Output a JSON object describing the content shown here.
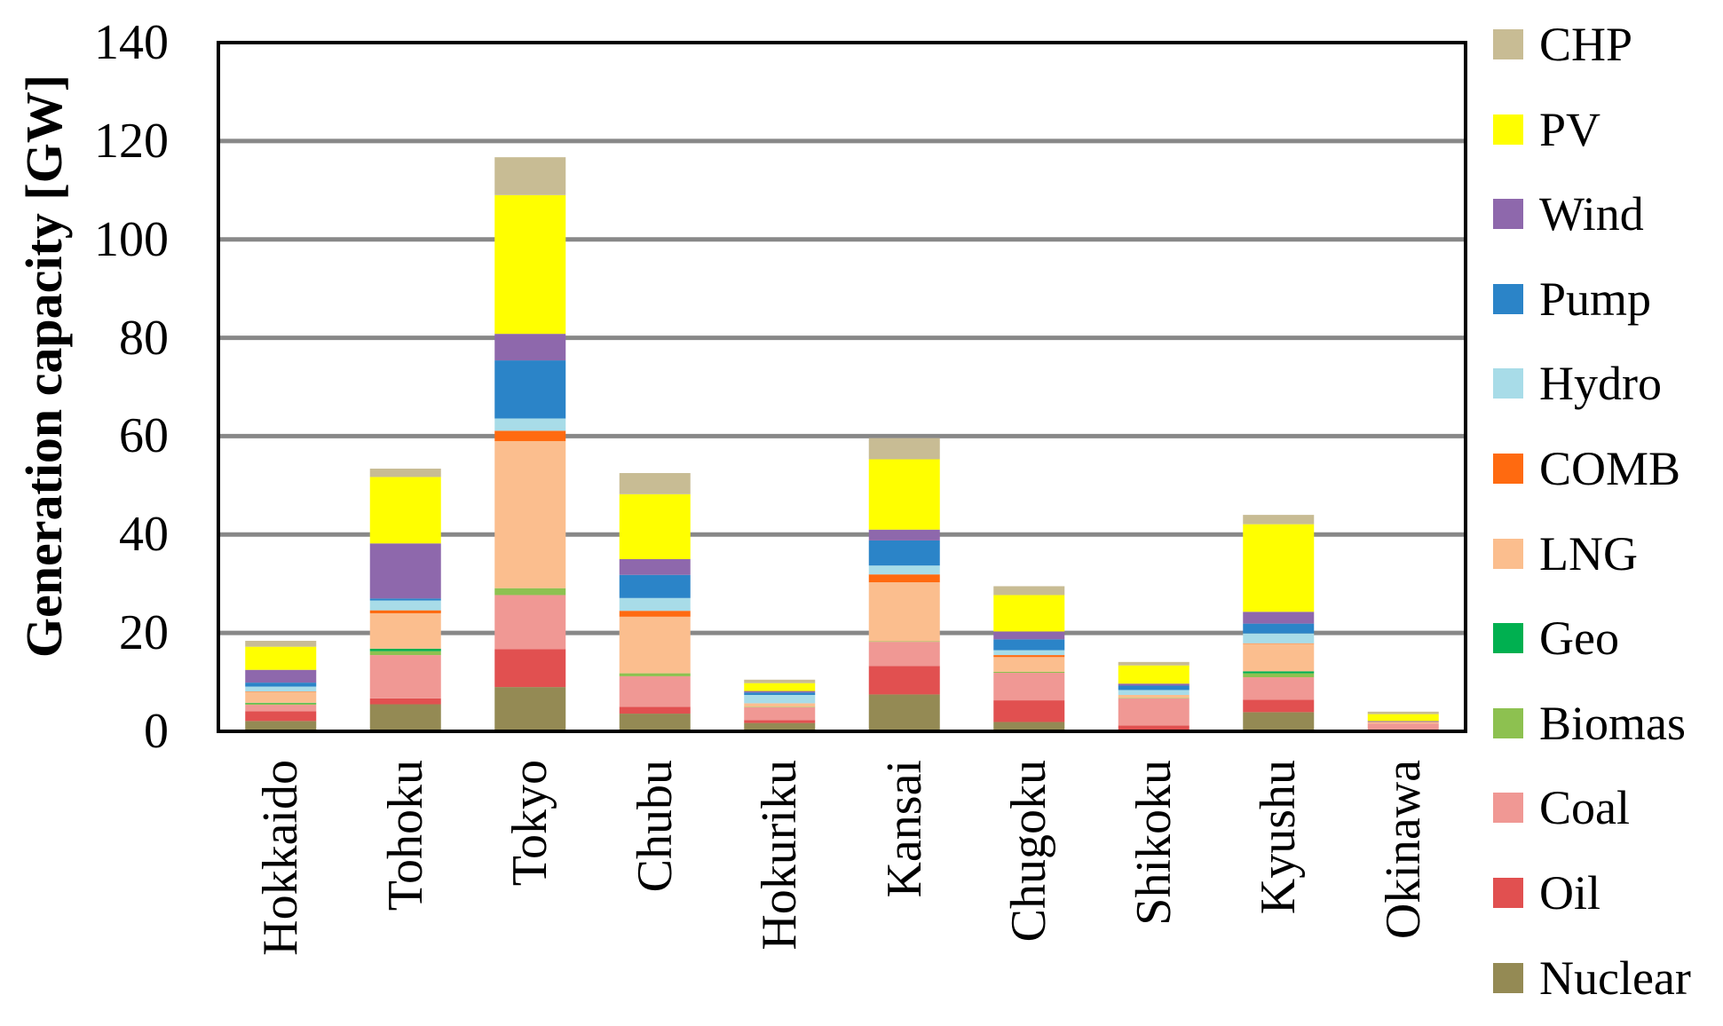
{
  "chart_data": {
    "type": "bar",
    "stacked": true,
    "ylabel": "Generation capacity  [GW]",
    "ylim": [
      0,
      140
    ],
    "yticks": [
      0,
      20,
      40,
      60,
      80,
      100,
      120,
      140
    ],
    "grid": true,
    "legend_position": "right",
    "categories": [
      "Hokkaido",
      "Tohoku",
      "Tokyo",
      "Chubu",
      "Hokuriku",
      "Kansai",
      "Chugoku",
      "Shikoku",
      "Kyushu",
      "Okinawa"
    ],
    "series": [
      {
        "name": "Nuclear",
        "color": "#948A54",
        "values": [
          2.1,
          5.5,
          9.0,
          3.6,
          1.7,
          7.5,
          1.9,
          0.2,
          3.9,
          0.0
        ]
      },
      {
        "name": "Oil",
        "color": "#E15050",
        "values": [
          2.0,
          1.2,
          7.7,
          1.4,
          0.6,
          5.8,
          4.4,
          1.0,
          2.5,
          0.0
        ]
      },
      {
        "name": "Coal",
        "color": "#F09894",
        "values": [
          1.3,
          8.8,
          11.0,
          6.2,
          2.6,
          4.9,
          5.6,
          5.5,
          4.6,
          1.6
        ]
      },
      {
        "name": "Biomas",
        "color": "#8DC150",
        "values": [
          0.3,
          0.8,
          1.4,
          0.6,
          0.1,
          0.1,
          0.2,
          0.1,
          0.8,
          0.0
        ]
      },
      {
        "name": "Geo",
        "color": "#00B050",
        "values": [
          0.1,
          0.5,
          0.0,
          0.0,
          0.0,
          0.0,
          0.0,
          0.0,
          0.4,
          0.0
        ]
      },
      {
        "name": "LNG",
        "color": "#FBBE8E",
        "values": [
          2.2,
          7.2,
          29.9,
          11.5,
          0.7,
          12.0,
          3.0,
          0.6,
          5.6,
          0.3
        ]
      },
      {
        "name": "COMB",
        "color": "#FF6A10",
        "values": [
          0.1,
          0.6,
          2.1,
          1.2,
          0.0,
          1.6,
          0.4,
          0.0,
          0.1,
          0.0
        ]
      },
      {
        "name": "Hydro",
        "color": "#A8DCE8",
        "values": [
          1.0,
          2.0,
          2.5,
          2.6,
          1.7,
          1.8,
          1.0,
          1.0,
          2.0,
          0.0
        ]
      },
      {
        "name": "Pump",
        "color": "#2B84C8",
        "values": [
          0.8,
          0.4,
          11.8,
          4.7,
          0.5,
          5.1,
          2.2,
          0.9,
          2.0,
          0.0
        ]
      },
      {
        "name": "Wind",
        "color": "#8E68AC",
        "values": [
          2.6,
          11.2,
          5.4,
          3.2,
          0.3,
          2.2,
          1.6,
          0.4,
          2.4,
          0.2
        ]
      },
      {
        "name": "PV",
        "color": "#FFFF00",
        "values": [
          4.7,
          13.5,
          28.2,
          13.2,
          1.6,
          14.3,
          7.4,
          3.7,
          17.8,
          1.4
        ]
      },
      {
        "name": "CHP",
        "color": "#C8BC94",
        "values": [
          1.2,
          1.7,
          7.7,
          4.3,
          0.7,
          4.3,
          1.8,
          0.7,
          1.9,
          0.5
        ]
      }
    ]
  }
}
